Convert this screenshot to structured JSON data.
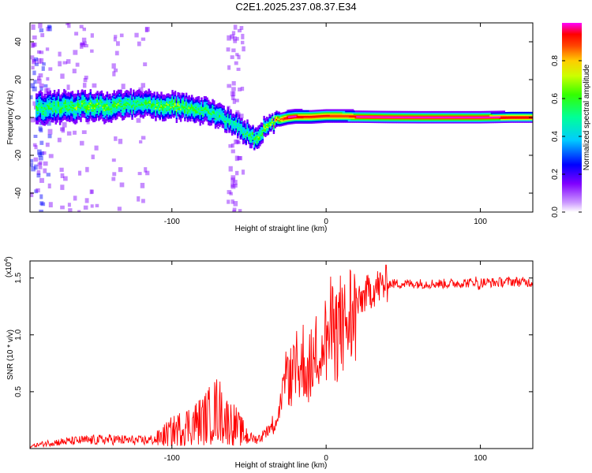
{
  "title": "C2E1.2025.237.08.37.E34",
  "chart_data": [
    {
      "type": "heatmap",
      "xlabel": "Height of straight line (km)",
      "ylabel": "Frequency (Hz)",
      "xlim": [
        -192,
        134
      ],
      "ylim": [
        -50,
        50
      ],
      "xticks": [
        -100,
        0,
        100
      ],
      "xtick_labels": [
        "-100",
        "0",
        "100"
      ],
      "yticks": [
        -40,
        -20,
        0,
        20,
        40
      ],
      "ytick_labels": [
        "-40",
        "-20",
        "0",
        "20",
        "40"
      ],
      "colorbar": {
        "label": "Normalized spectral amplitude",
        "range": [
          0,
          1
        ],
        "ticks": [
          0,
          0.2,
          0.4,
          0.6,
          0.8
        ],
        "tick_labels": [
          "0.0",
          "0.2",
          "0.4",
          "0.6",
          "0.8"
        ]
      },
      "ridge": {
        "x": [
          -180,
          -160,
          -140,
          -120,
          -100,
          -80,
          -70,
          -60,
          -50,
          -45,
          -40,
          -35,
          -30,
          -25,
          -20,
          -10,
          0,
          10,
          20,
          40,
          60,
          80,
          100,
          120,
          134
        ],
        "freq": [
          5,
          6,
          6,
          7,
          6,
          4,
          1,
          -3,
          -9,
          -12,
          -5,
          -3,
          -1,
          0,
          0.5,
          0.5,
          1,
          1,
          0.5,
          0.3,
          0.2,
          0.2,
          0.2,
          0.2,
          0.2
        ],
        "width_hz": [
          8,
          7,
          7,
          6,
          6,
          6,
          6,
          5,
          5,
          5,
          4,
          3,
          2,
          2,
          2,
          2,
          2,
          2,
          1.5,
          1.5,
          1.5,
          1.5,
          1.5,
          1.2,
          1.2
        ],
        "peak_amplitude": [
          0.5,
          0.55,
          0.55,
          0.5,
          0.6,
          0.5,
          0.45,
          0.45,
          0.5,
          0.55,
          0.6,
          0.7,
          0.8,
          0.95,
          0.95,
          0.9,
          0.9,
          0.85,
          0.95,
          0.95,
          0.95,
          0.95,
          0.95,
          0.95,
          0.95
        ]
      }
    },
    {
      "type": "line",
      "xlabel": "Height of straight line (km)",
      "ylabel": "SNR (10 * v/v)",
      "scale_label": "(x10",
      "scale_exponent": "4",
      "scale_suffix": ")",
      "xlim": [
        -192,
        134
      ],
      "ylim": [
        0,
        16500
      ],
      "xticks": [
        -100,
        0,
        100
      ],
      "xtick_labels": [
        "-100",
        "0",
        "100"
      ],
      "yticks": [
        5000,
        10000,
        15000
      ],
      "ytick_labels": [
        "0.5",
        "1.0",
        "1.5"
      ],
      "color": "#ff0000",
      "series": [
        {
          "name": "SNR",
          "x": [
            -192,
            -180,
            -160,
            -140,
            -120,
            -110,
            -100,
            -90,
            -80,
            -75,
            -70,
            -65,
            -60,
            -55,
            -50,
            -45,
            -40,
            -35,
            -30,
            -27,
            -25,
            -22,
            -20,
            -17,
            -15,
            -12,
            -10,
            -7,
            -5,
            -2,
            0,
            3,
            5,
            8,
            10,
            12,
            15,
            18,
            20,
            25,
            30,
            35,
            40,
            60,
            80,
            95,
            97,
            99,
            100,
            110,
            120,
            134
          ],
          "y": [
            200,
            500,
            700,
            800,
            700,
            800,
            1500,
            2000,
            2500,
            3000,
            3500,
            2500,
            2200,
            1500,
            1000,
            800,
            1200,
            2000,
            3500,
            5000,
            7000,
            6000,
            7500,
            6500,
            8000,
            6500,
            7500,
            8000,
            9000,
            9500,
            9500,
            10500,
            10000,
            10500,
            11000,
            10500,
            11500,
            12000,
            12500,
            13500,
            14000,
            14300,
            14500,
            14500,
            14500,
            14600,
            14800,
            14200,
            14600,
            14600,
            14700,
            14600
          ]
        }
      ]
    }
  ]
}
